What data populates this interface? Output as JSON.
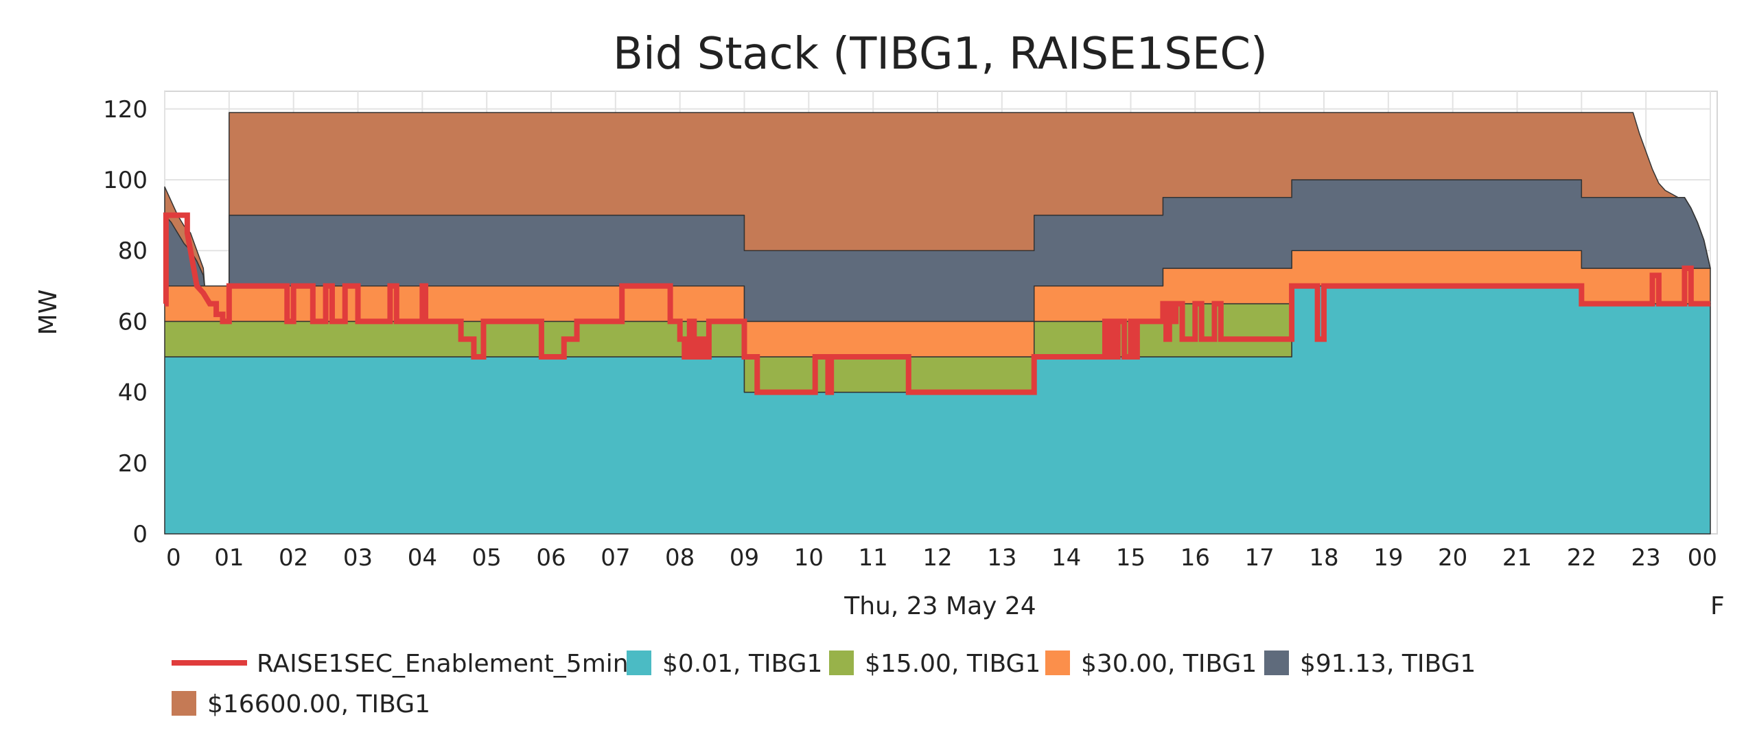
{
  "chart_data": {
    "type": "area",
    "stacked": true,
    "title": "Bid Stack (TIBG1, RAISE1SEC)",
    "ylabel": "MW",
    "xlabel": "Thu, 23 May 24",
    "ylim": [
      0,
      125
    ],
    "yticks": [
      0,
      20,
      40,
      60,
      80,
      100,
      120
    ],
    "xlim": [
      0,
      24
    ],
    "xtick_labels": [
      "0",
      "01",
      "02",
      "03",
      "04",
      "05",
      "06",
      "07",
      "08",
      "09",
      "10",
      "11",
      "12",
      "13",
      "14",
      "15",
      "16",
      "17",
      "18",
      "19",
      "20",
      "21",
      "22",
      "23",
      "00"
    ],
    "xtick_edge_label": "F",
    "grid": true,
    "legend_position": "bottom-left",
    "series": [
      {
        "name": "$0.01, TIBG1",
        "color": "#4bbbc4",
        "x": [
          0,
          9,
          9,
          13.5,
          13.5,
          17.5,
          17.5,
          22,
          22,
          24
        ],
        "y": [
          50,
          50,
          40,
          40,
          50,
          50,
          70,
          70,
          65,
          65
        ]
      },
      {
        "name": "$15.00, TIBG1",
        "color": "#98b24a",
        "x": [
          0,
          9,
          9,
          13.5,
          13.5,
          15.5,
          15.5,
          17.5,
          17.5,
          24
        ],
        "y": [
          10,
          10,
          10,
          10,
          10,
          10,
          15,
          15,
          0,
          0
        ]
      },
      {
        "name": "$30.00, TIBG1",
        "color": "#fb8f4b",
        "x": [
          0,
          9,
          9,
          13.5,
          13.5,
          15.5,
          15.5,
          17.5,
          17.5,
          22,
          22,
          24
        ],
        "y": [
          10,
          10,
          10,
          10,
          10,
          10,
          10,
          10,
          10,
          10,
          10,
          10
        ]
      },
      {
        "name": "$91.13, TIBG1",
        "color": "#5f6b7c",
        "x": [
          0,
          0.1,
          0.2,
          0.3,
          0.4,
          0.5,
          0.6,
          0.62,
          0.65,
          0.7,
          0.75,
          0.8,
          0.85,
          0.9,
          0.95,
          1.0,
          1.0,
          9,
          9,
          13.5,
          13.5,
          15.5,
          15.5,
          17.5,
          17.5,
          22,
          22,
          22.8,
          22.9,
          23.0,
          23.1,
          23.2,
          23.3,
          23.4,
          23.5,
          23.6,
          23.7,
          23.8,
          23.9,
          24
        ],
        "y": [
          20,
          18,
          15,
          12,
          10,
          7,
          3,
          0,
          0,
          0,
          0,
          0,
          0,
          0,
          0,
          0,
          20,
          20,
          20,
          20,
          20,
          20,
          20,
          20,
          20,
          20,
          20,
          20,
          20,
          20,
          20,
          20,
          20,
          20,
          20,
          20,
          17,
          13,
          8,
          0
        ]
      },
      {
        "name": "$16600.00, TIBG1",
        "color": "#c57a55",
        "x": [
          0,
          0.1,
          0.2,
          0.3,
          0.4,
          0.5,
          0.6,
          0.62,
          0.65,
          0.7,
          0.75,
          0.8,
          0.85,
          0.9,
          0.95,
          1.0,
          1.0,
          9,
          9,
          13.5,
          13.5,
          15.5,
          15.5,
          17.5,
          17.5,
          22,
          22,
          22.8,
          22.9,
          23.0,
          23.1,
          23.2,
          23.3,
          23.4,
          23.5,
          23.6,
          23.7,
          23.8,
          23.9,
          24
        ],
        "y": [
          8,
          6,
          5,
          5,
          5,
          3,
          2,
          0,
          0,
          0,
          0,
          0,
          0,
          0,
          0,
          0,
          29,
          29,
          39,
          39,
          29,
          29,
          24,
          24,
          19,
          19,
          24,
          24,
          18,
          13,
          8,
          4,
          2,
          1,
          0,
          0,
          0,
          0,
          0,
          0
        ]
      }
    ],
    "line_series": {
      "name": "RAISE1SEC_Enablement_5min",
      "color": "#e03c3c",
      "x": [
        0,
        0.02,
        0.02,
        0.35,
        0.35,
        0.4,
        0.5,
        0.6,
        0.7,
        0.8,
        0.8,
        0.9,
        0.9,
        1.0,
        1.0,
        1.9,
        1.9,
        2.0,
        2.0,
        2.3,
        2.3,
        2.5,
        2.5,
        2.6,
        2.6,
        2.8,
        2.8,
        3.0,
        3.0,
        3.5,
        3.5,
        3.6,
        3.6,
        4.0,
        4.0,
        4.05,
        4.05,
        4.6,
        4.6,
        4.8,
        4.8,
        4.95,
        4.95,
        5.85,
        5.85,
        6.2,
        6.2,
        6.4,
        6.4,
        7.1,
        7.1,
        7.85,
        7.85,
        8.0,
        8.0,
        8.07,
        8.07,
        8.15,
        8.15,
        8.22,
        8.22,
        8.3,
        8.3,
        8.38,
        8.38,
        8.45,
        8.45,
        8.5,
        8.5,
        9.0,
        9.0,
        9.2,
        9.2,
        10.1,
        10.1,
        10.3,
        10.3,
        10.35,
        10.35,
        10.5,
        10.5,
        11.55,
        11.55,
        13.5,
        13.5,
        14.6,
        14.6,
        14.65,
        14.65,
        14.7,
        14.7,
        14.75,
        14.75,
        14.8,
        14.8,
        14.9,
        14.9,
        15.0,
        15.0,
        15.05,
        15.05,
        15.1,
        15.1,
        15.5,
        15.5,
        15.55,
        15.55,
        15.6,
        15.6,
        15.65,
        15.65,
        15.7,
        15.7,
        15.8,
        15.8,
        16.0,
        16.0,
        16.1,
        16.1,
        16.3,
        16.3,
        16.4,
        16.4,
        16.7,
        16.7,
        17.5,
        17.5,
        17.9,
        17.9,
        18.0,
        18.0,
        22.0,
        22.0,
        23.1,
        23.1,
        23.2,
        23.2,
        23.6,
        23.6,
        23.7,
        23.7,
        24
      ],
      "y": [
        65,
        65,
        90,
        90,
        85,
        80,
        70,
        68,
        65,
        65,
        62,
        62,
        60,
        60,
        70,
        70,
        60,
        60,
        70,
        70,
        60,
        60,
        70,
        70,
        60,
        60,
        70,
        70,
        60,
        60,
        70,
        70,
        60,
        60,
        70,
        70,
        60,
        60,
        55,
        55,
        50,
        50,
        60,
        60,
        50,
        50,
        55,
        55,
        60,
        60,
        70,
        70,
        60,
        60,
        55,
        55,
        50,
        50,
        60,
        60,
        50,
        50,
        55,
        55,
        50,
        50,
        60,
        60,
        60,
        60,
        50,
        50,
        40,
        40,
        50,
        50,
        40,
        40,
        50,
        50,
        50,
        50,
        40,
        40,
        50,
        50,
        60,
        60,
        50,
        50,
        60,
        60,
        50,
        50,
        60,
        60,
        50,
        50,
        60,
        60,
        50,
        50,
        60,
        60,
        65,
        65,
        55,
        55,
        65,
        65,
        60,
        60,
        65,
        65,
        55,
        55,
        65,
        65,
        55,
        55,
        65,
        65,
        55,
        55,
        55,
        55,
        70,
        70,
        55,
        55,
        70,
        70,
        65,
        65,
        73,
        73,
        65,
        65,
        75,
        75,
        65,
        65
      ]
    }
  }
}
